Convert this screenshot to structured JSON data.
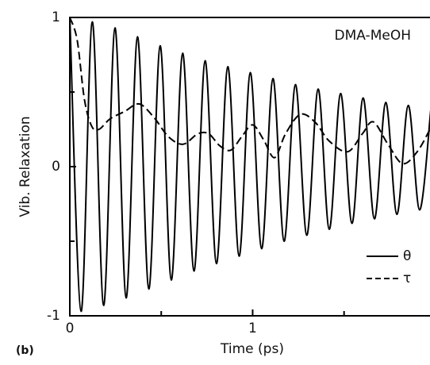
{
  "chart_data": {
    "type": "line",
    "annotation": "DMA-MeOH",
    "panel_label": "(b)",
    "x_label": "Time (ps)",
    "y_label": "Vib. Relaxation",
    "xlim": [
      0,
      1.97
    ],
    "ylim": [
      -1,
      1
    ],
    "xticks": [
      0,
      1
    ],
    "yticks": [
      -1,
      0,
      1
    ],
    "x_minor_ticks": [
      0.5,
      1.5
    ],
    "y_minor_ticks": [
      -0.5,
      0.5
    ],
    "legend": "lower right",
    "series": [
      {
        "name": "θ",
        "color": "#000000",
        "dash": "solid",
        "x": [
          0,
          0.062,
          0.123,
          0.185,
          0.247,
          0.308,
          0.37,
          0.432,
          0.494,
          0.555,
          0.617,
          0.679,
          0.74,
          0.802,
          0.864,
          0.926,
          0.987,
          1.049,
          1.111,
          1.172,
          1.234,
          1.296,
          1.358,
          1.419,
          1.481,
          1.543,
          1.604,
          1.666,
          1.728,
          1.789,
          1.851,
          1.913,
          1.975
        ],
        "values": [
          1,
          -0.97,
          0.97,
          -0.93,
          0.93,
          -0.88,
          0.87,
          -0.82,
          0.81,
          -0.76,
          0.76,
          -0.7,
          0.71,
          -0.65,
          0.67,
          -0.6,
          0.63,
          -0.55,
          0.59,
          -0.5,
          0.55,
          -0.46,
          0.52,
          -0.42,
          0.49,
          -0.38,
          0.46,
          -0.35,
          0.43,
          -0.32,
          0.41,
          -0.29,
          0.39
        ]
      },
      {
        "name": "τ",
        "color": "#000000",
        "dash": "dashed",
        "x": [
          0,
          0.04,
          0.08,
          0.12,
          0.16,
          0.22,
          0.3,
          0.38,
          0.46,
          0.54,
          0.62,
          0.7,
          0.76,
          0.82,
          0.88,
          0.94,
          1.0,
          1.06,
          1.12,
          1.18,
          1.26,
          1.34,
          1.42,
          1.52,
          1.6,
          1.66,
          1.74,
          1.82,
          1.9,
          1.97
        ],
        "values": [
          1,
          0.85,
          0.45,
          0.27,
          0.25,
          0.32,
          0.37,
          0.42,
          0.33,
          0.2,
          0.15,
          0.22,
          0.22,
          0.14,
          0.11,
          0.2,
          0.28,
          0.18,
          0.06,
          0.22,
          0.35,
          0.3,
          0.17,
          0.1,
          0.22,
          0.3,
          0.15,
          0.02,
          0.1,
          0.25
        ]
      }
    ]
  }
}
